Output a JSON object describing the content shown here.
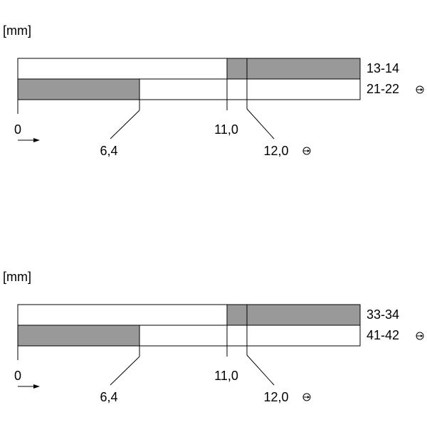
{
  "diagrams": [
    {
      "unit": "[mm]",
      "rows": [
        "13-14",
        "21-22"
      ],
      "positions": [
        "0",
        "6,4",
        "11,0",
        "12,0"
      ]
    },
    {
      "unit": "[mm]",
      "rows": [
        "33-34",
        "41-42"
      ],
      "positions": [
        "0",
        "6,4",
        "11,0",
        "12,0"
      ]
    }
  ]
}
